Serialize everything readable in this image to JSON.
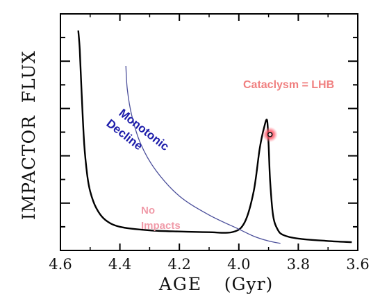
{
  "chart_data": {
    "type": "line",
    "title": "",
    "xlabel": "AGE",
    "xlabel_unit": "(Gyr)",
    "ylabel": "IMPACTOR  FLUX",
    "xlim": [
      4.6,
      3.6
    ],
    "x_reversed": true,
    "xticks": [
      "4.6",
      "4.4",
      "4.2",
      "4.0",
      "3.8",
      "3.6"
    ],
    "ylim": [
      0,
      10
    ],
    "y_tick_count": 9,
    "grid": false,
    "series": [
      {
        "color": "#000000",
        "x": [
          4.54,
          4.535,
          4.53,
          4.52,
          4.51,
          4.5,
          4.48,
          4.45,
          4.4,
          4.3,
          4.2,
          4.1,
          4.02,
          3.98,
          3.95,
          3.93,
          3.915,
          3.905,
          3.9,
          3.895,
          3.885,
          3.87,
          3.85,
          3.8,
          3.7,
          3.62
        ],
        "y": [
          9.3,
          8.5,
          7.0,
          4.5,
          3.2,
          2.5,
          1.8,
          1.3,
          1.0,
          0.85,
          0.8,
          0.77,
          0.78,
          1.2,
          2.5,
          4.3,
          5.2,
          5.5,
          4.5,
          3.0,
          1.5,
          0.9,
          0.65,
          0.5,
          0.4,
          0.35
        ]
      },
      {
        "color": "#4a4e9a",
        "x": [
          4.38,
          4.375,
          4.36,
          4.33,
          4.28,
          4.2,
          4.1,
          4.0,
          3.95,
          3.9,
          3.86
        ],
        "y": [
          7.8,
          6.8,
          5.7,
          4.5,
          3.4,
          2.3,
          1.5,
          0.9,
          0.6,
          0.4,
          0.3
        ]
      }
    ],
    "marker": {
      "x": 3.895,
      "y": 4.9,
      "color": "#e0283a"
    },
    "annotations": [
      {
        "text": "Cataclysm = LHB",
        "color": "#f08080"
      },
      {
        "text": "Monotonic",
        "color": "#1c1caa"
      },
      {
        "text": "Decline",
        "color": "#1c1caa"
      },
      {
        "text": "No",
        "color": "#f09aa8"
      },
      {
        "text": "Impacts",
        "color": "#f09aa8"
      }
    ]
  }
}
